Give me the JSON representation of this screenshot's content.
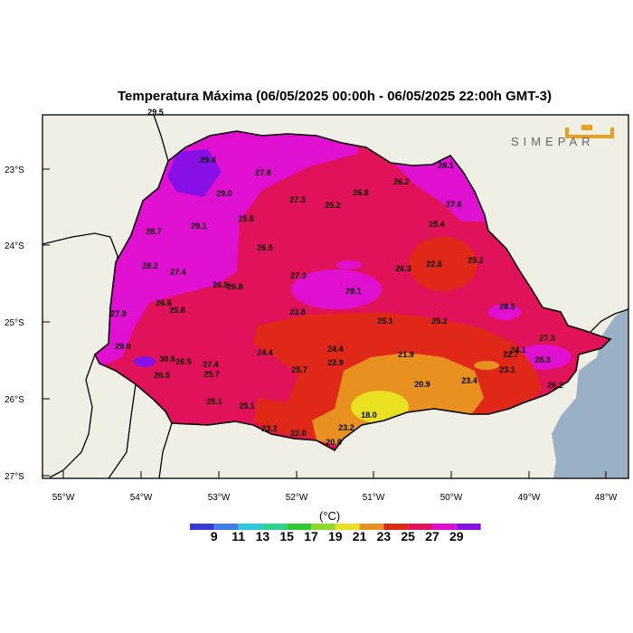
{
  "title": "Temperatura Máxima (06/05/2025 00:00h - 06/05/2025 22:00h GMT-3)",
  "logo_text": "SIMEPAR",
  "lat_labels": [
    "23°S",
    "24°S",
    "25°S",
    "26°S",
    "27°S"
  ],
  "lon_labels": [
    "55°W",
    "54°W",
    "53°W",
    "52°W",
    "51°W",
    "50°W",
    "49°W",
    "48°W"
  ],
  "colorbar": {
    "unit": "(°C)",
    "ticks": [
      "9",
      "11",
      "13",
      "15",
      "17",
      "19",
      "21",
      "23",
      "25",
      "27",
      "29"
    ],
    "colors": [
      "#3a3ad8",
      "#3f7fe6",
      "#2fc8d8",
      "#2bd48a",
      "#2fca32",
      "#8fd82b",
      "#e8e020",
      "#e89020",
      "#e02818",
      "#e0125a",
      "#e010d0",
      "#8810e6"
    ]
  },
  "station_values": [
    {
      "v": "29.5"
    },
    {
      "v": "29.4"
    },
    {
      "v": "27.8"
    },
    {
      "v": "29.0"
    },
    {
      "v": "27.3"
    },
    {
      "v": "26.8"
    },
    {
      "v": "25.2"
    },
    {
      "v": "26.2"
    },
    {
      "v": "28.1"
    },
    {
      "v": "27.6"
    },
    {
      "v": "28.7"
    },
    {
      "v": "29.1"
    },
    {
      "v": "25.8"
    },
    {
      "v": "26.5"
    },
    {
      "v": "25.4"
    },
    {
      "v": "28.2"
    },
    {
      "v": "27.4"
    },
    {
      "v": "26.3"
    },
    {
      "v": "22.8"
    },
    {
      "v": "25.2"
    },
    {
      "v": "27.3"
    },
    {
      "v": "26.9"
    },
    {
      "v": "26.8"
    },
    {
      "v": "29.1"
    },
    {
      "v": "26.6"
    },
    {
      "v": "25.8"
    },
    {
      "v": "23.8"
    },
    {
      "v": "28.5"
    },
    {
      "v": "27.9"
    },
    {
      "v": "25.1"
    },
    {
      "v": "25.2"
    },
    {
      "v": "27.3"
    },
    {
      "v": "29.0"
    },
    {
      "v": "24.4"
    },
    {
      "v": "24.4"
    },
    {
      "v": "21.9"
    },
    {
      "v": "22.7"
    },
    {
      "v": "24.1"
    },
    {
      "v": "30.6"
    },
    {
      "v": "26.5"
    },
    {
      "v": "27.4"
    },
    {
      "v": "22.9"
    },
    {
      "v": "28.3"
    },
    {
      "v": "26.5"
    },
    {
      "v": "25.7"
    },
    {
      "v": "25.7"
    },
    {
      "v": "23.1"
    },
    {
      "v": "23.4"
    },
    {
      "v": "20.9"
    },
    {
      "v": "26.2"
    },
    {
      "v": "25.1"
    },
    {
      "v": "25.1"
    },
    {
      "v": "18.0"
    },
    {
      "v": "23.2"
    },
    {
      "v": "23.2"
    },
    {
      "v": "22.0"
    },
    {
      "v": "20.8"
    }
  ]
}
